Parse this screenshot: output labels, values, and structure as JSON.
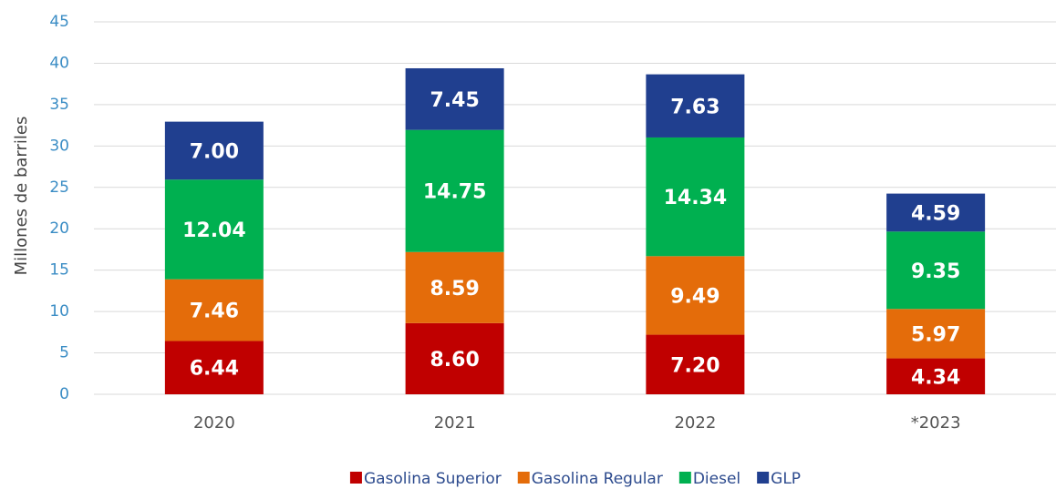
{
  "chart_data": {
    "type": "stacked_bar",
    "y_label": "Millones de barriles",
    "categories": [
      "2020",
      "2021",
      "2022",
      "*2023"
    ],
    "series": [
      {
        "name": "Gasolina Superior",
        "color": "#c00000",
        "values": [
          6.44,
          8.6,
          7.2,
          4.34
        ],
        "value_labels": [
          "6.44",
          "8.60",
          "7.20",
          "4.34"
        ]
      },
      {
        "name": "Gasolina Regular",
        "color": "#e46c0a",
        "values": [
          7.46,
          8.59,
          9.49,
          5.97
        ],
        "value_labels": [
          "7.46",
          "8.59",
          "9.49",
          "5.97"
        ]
      },
      {
        "name": "Diesel",
        "color": "#00b050",
        "values": [
          12.04,
          14.75,
          14.34,
          9.35
        ],
        "value_labels": [
          "12.04",
          "14.75",
          "14.34",
          "9.35"
        ]
      },
      {
        "name": "GLP",
        "color": "#203f8f",
        "values": [
          7,
          7.45,
          7.63,
          4.59
        ],
        "value_labels": [
          "7.00",
          "7.45",
          "7.63",
          "4.59"
        ]
      }
    ],
    "ylim": [
      0,
      45
    ],
    "yticks": [
      0,
      5,
      10,
      15,
      20,
      25,
      30,
      35,
      40,
      45
    ],
    "grid": true,
    "legend": "bottom"
  }
}
